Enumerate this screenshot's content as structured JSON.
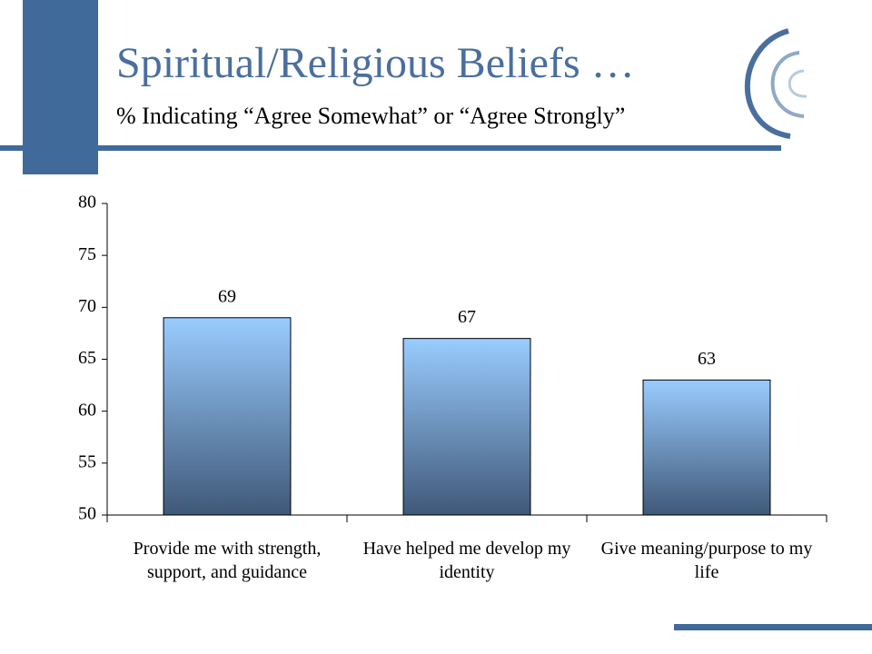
{
  "chart_data": {
    "type": "bar",
    "title": "Spiritual/Religious Beliefs …",
    "subtitle": "% Indicating “Agree Somewhat” or “Agree Strongly”",
    "categories": [
      "Provide me with strength, support, and guidance",
      "Have helped me develop my identity",
      "Give meaning/purpose to my life"
    ],
    "values": [
      69,
      67,
      63
    ],
    "color": [
      "#99ccff",
      "#3f5878"
    ],
    "ylim": [
      50,
      80
    ],
    "yticks": [
      50,
      55,
      60,
      65,
      70,
      75,
      80
    ]
  }
}
